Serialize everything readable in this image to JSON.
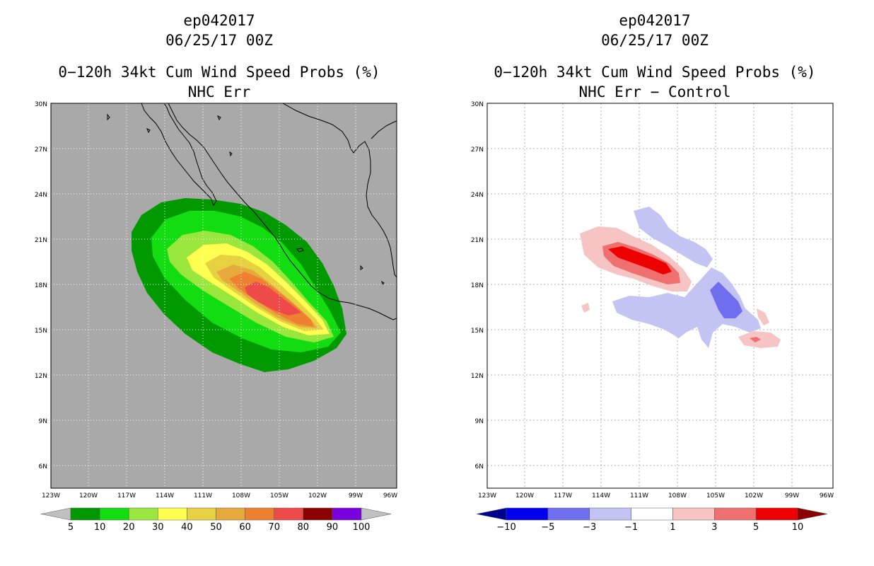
{
  "left_panel": {
    "storm_id": "ep042017",
    "datetime": "06/25/17 00Z",
    "title": "0−120h 34kt Cum Wind Speed Probs (%)",
    "subtitle": "NHC Err",
    "background": "#a9a9a9",
    "colorbar": {
      "labels": [
        "5",
        "10",
        "20",
        "30",
        "40",
        "50",
        "60",
        "70",
        "80",
        "90",
        "100"
      ],
      "colors": [
        "#c0c0c0",
        "#009900",
        "#11dd11",
        "#99e63c",
        "#ffff50",
        "#e6d240",
        "#e6aa3c",
        "#ee8030",
        "#ee4a4a",
        "#8b0000",
        "#7a00dd",
        "#c0c0c0"
      ]
    }
  },
  "right_panel": {
    "storm_id": "ep042017",
    "datetime": "06/25/17 00Z",
    "title": "0−120h 34kt Cum Wind Speed Probs (%)",
    "subtitle": "NHC Err − Control",
    "background": "#ffffff",
    "colorbar": {
      "labels": [
        "−10",
        "−5",
        "−3",
        "−1",
        "1",
        "3",
        "5",
        "10"
      ],
      "colors": [
        "#000090",
        "#0000ee",
        "#6e6eee",
        "#c4c4f4",
        "#ffffff",
        "#f7c4c4",
        "#f07070",
        "#ee0000",
        "#8b0000"
      ]
    }
  },
  "lat_labels": [
    "30N",
    "27N",
    "24N",
    "21N",
    "18N",
    "15N",
    "12N",
    "9N",
    "6N"
  ],
  "lon_labels": [
    "123W",
    "120W",
    "117W",
    "114W",
    "111W",
    "108W",
    "105W",
    "102W",
    "99W",
    "96W"
  ]
}
